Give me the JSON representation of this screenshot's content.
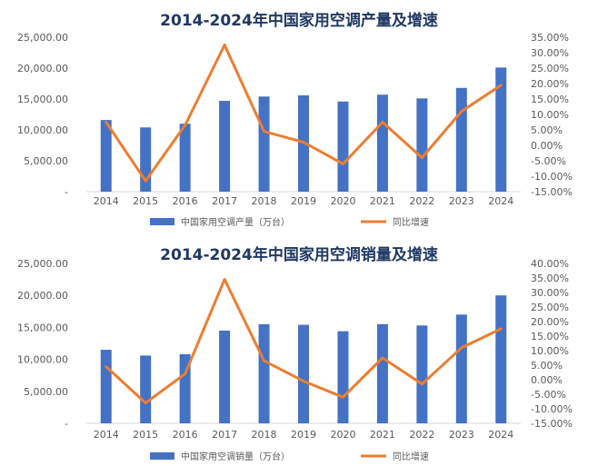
{
  "chart_data": [
    {
      "type": "bar",
      "title": "2014-2024年中国家用空调产量及增速",
      "categories": [
        "2014",
        "2015",
        "2016",
        "2017",
        "2018",
        "2019",
        "2020",
        "2021",
        "2022",
        "2023",
        "2024"
      ],
      "series": [
        {
          "name": "中国家用空调产量（万台）",
          "type": "bar",
          "axis": "left",
          "color": "#4472c4",
          "values": [
            11600,
            10400,
            11000,
            14700,
            15400,
            15600,
            14600,
            15700,
            15100,
            16800,
            20100
          ]
        },
        {
          "name": "同比增速",
          "type": "line",
          "axis": "right",
          "color": "#ed7d31",
          "values": [
            7.5,
            -11.5,
            6.5,
            32.5,
            4.5,
            1.0,
            -6.0,
            7.5,
            -4.0,
            11.0,
            19.5
          ]
        }
      ],
      "yticks_left": [
        "-",
        "5,000.00",
        "10,000.00",
        "15,000.00",
        "20,000.00",
        "25,000.00"
      ],
      "yticks_right": [
        "-15.00%",
        "-10.00%",
        "-5.00%",
        "0.00%",
        "5.00%",
        "10.00%",
        "15.00%",
        "20.00%",
        "25.00%",
        "30.00%",
        "35.00%"
      ],
      "ylim_left": [
        0,
        25000
      ],
      "ylim_right": [
        -15,
        35
      ],
      "grid": false,
      "legend": "bottom"
    },
    {
      "type": "bar",
      "title": "2014-2024年中国家用空调销量及增速",
      "categories": [
        "2014",
        "2015",
        "2016",
        "2017",
        "2018",
        "2019",
        "2020",
        "2021",
        "2022",
        "2023",
        "2024"
      ],
      "series": [
        {
          "name": "中国家用空调销量（万台）",
          "type": "bar",
          "axis": "left",
          "color": "#4472c4",
          "values": [
            11500,
            10600,
            10800,
            14500,
            15500,
            15400,
            14400,
            15500,
            15300,
            17000,
            20000
          ]
        },
        {
          "name": "同比增速",
          "type": "line",
          "axis": "right",
          "color": "#ed7d31",
          "values": [
            4.5,
            -8.0,
            2.0,
            34.5,
            6.5,
            -0.5,
            -6.0,
            7.5,
            -1.5,
            11.0,
            17.5
          ]
        }
      ],
      "yticks_left": [
        "-",
        "5,000.00",
        "10,000.00",
        "15,000.00",
        "20,000.00",
        "25,000.00"
      ],
      "yticks_right": [
        "-15.00%",
        "-10.00%",
        "-5.00%",
        "0.00%",
        "5.00%",
        "10.00%",
        "15.00%",
        "20.00%",
        "25.00%",
        "30.00%",
        "35.00%",
        "40.00%"
      ],
      "ylim_left": [
        0,
        25000
      ],
      "ylim_right": [
        -15,
        40
      ],
      "grid": false,
      "legend": "bottom"
    }
  ]
}
